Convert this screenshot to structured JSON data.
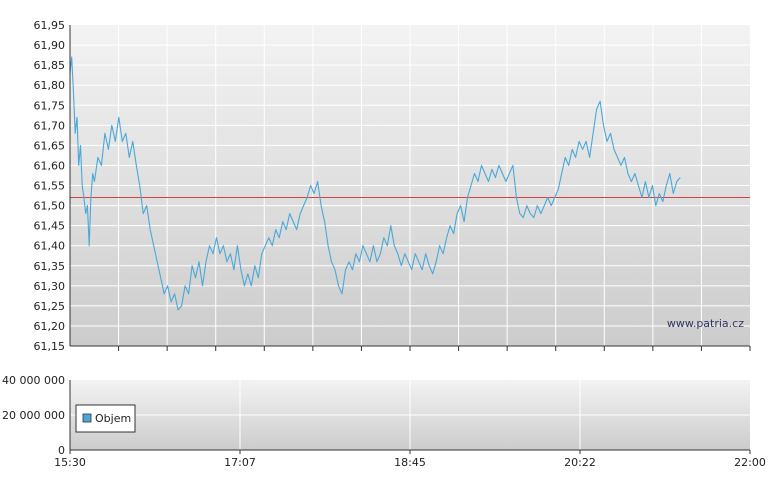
{
  "chart_data": [
    {
      "type": "line",
      "panel": "price",
      "ylim": [
        61.15,
        61.95
      ],
      "y_ticks": [
        "61,95",
        "61,90",
        "61,85",
        "61,80",
        "61,75",
        "61,70",
        "61,65",
        "61,60",
        "61,55",
        "61,50",
        "61,45",
        "61,40",
        "61,35",
        "61,30",
        "61,25",
        "61,20",
        "61,15"
      ],
      "reference_line": 61.52,
      "series": [
        {
          "color": "#4aa8d8",
          "points": [
            [
              "15:30",
              61.83
            ],
            [
              "15:31",
              61.87
            ],
            [
              "15:32",
              61.78
            ],
            [
              "15:33",
              61.68
            ],
            [
              "15:34",
              61.72
            ],
            [
              "15:35",
              61.6
            ],
            [
              "15:36",
              61.65
            ],
            [
              "15:37",
              61.55
            ],
            [
              "15:38",
              61.52
            ],
            [
              "15:39",
              61.48
            ],
            [
              "15:40",
              61.5
            ],
            [
              "15:41",
              61.4
            ],
            [
              "15:42",
              61.52
            ],
            [
              "15:43",
              61.58
            ],
            [
              "15:44",
              61.56
            ],
            [
              "15:46",
              61.62
            ],
            [
              "15:48",
              61.6
            ],
            [
              "15:50",
              61.68
            ],
            [
              "15:52",
              61.64
            ],
            [
              "15:54",
              61.7
            ],
            [
              "15:56",
              61.66
            ],
            [
              "15:58",
              61.72
            ],
            [
              "16:00",
              61.66
            ],
            [
              "16:02",
              61.68
            ],
            [
              "16:04",
              61.62
            ],
            [
              "16:06",
              61.66
            ],
            [
              "16:08",
              61.6
            ],
            [
              "16:10",
              61.55
            ],
            [
              "16:12",
              61.48
            ],
            [
              "16:14",
              61.5
            ],
            [
              "16:16",
              61.44
            ],
            [
              "16:18",
              61.4
            ],
            [
              "16:20",
              61.36
            ],
            [
              "16:22",
              61.32
            ],
            [
              "16:24",
              61.28
            ],
            [
              "16:26",
              61.3
            ],
            [
              "16:28",
              61.26
            ],
            [
              "16:30",
              61.28
            ],
            [
              "16:32",
              61.24
            ],
            [
              "16:34",
              61.25
            ],
            [
              "16:36",
              61.3
            ],
            [
              "16:38",
              61.28
            ],
            [
              "16:40",
              61.35
            ],
            [
              "16:42",
              61.32
            ],
            [
              "16:44",
              61.36
            ],
            [
              "16:46",
              61.3
            ],
            [
              "16:48",
              61.36
            ],
            [
              "16:50",
              61.4
            ],
            [
              "16:52",
              61.38
            ],
            [
              "16:54",
              61.42
            ],
            [
              "16:56",
              61.38
            ],
            [
              "16:58",
              61.4
            ],
            [
              "17:00",
              61.36
            ],
            [
              "17:02",
              61.38
            ],
            [
              "17:04",
              61.34
            ],
            [
              "17:06",
              61.4
            ],
            [
              "17:08",
              61.34
            ],
            [
              "17:10",
              61.3
            ],
            [
              "17:12",
              61.33
            ],
            [
              "17:14",
              61.3
            ],
            [
              "17:16",
              61.35
            ],
            [
              "17:18",
              61.32
            ],
            [
              "17:20",
              61.38
            ],
            [
              "17:22",
              61.4
            ],
            [
              "17:24",
              61.42
            ],
            [
              "17:26",
              61.4
            ],
            [
              "17:28",
              61.44
            ],
            [
              "17:30",
              61.42
            ],
            [
              "17:32",
              61.46
            ],
            [
              "17:34",
              61.44
            ],
            [
              "17:36",
              61.48
            ],
            [
              "17:38",
              61.46
            ],
            [
              "17:40",
              61.44
            ],
            [
              "17:42",
              61.48
            ],
            [
              "17:44",
              61.5
            ],
            [
              "17:46",
              61.52
            ],
            [
              "17:48",
              61.55
            ],
            [
              "17:50",
              61.53
            ],
            [
              "17:52",
              61.56
            ],
            [
              "17:54",
              61.5
            ],
            [
              "17:56",
              61.46
            ],
            [
              "17:58",
              61.4
            ],
            [
              "18:00",
              61.36
            ],
            [
              "18:02",
              61.34
            ],
            [
              "18:04",
              61.3
            ],
            [
              "18:06",
              61.28
            ],
            [
              "18:08",
              61.34
            ],
            [
              "18:10",
              61.36
            ],
            [
              "18:12",
              61.34
            ],
            [
              "18:14",
              61.38
            ],
            [
              "18:16",
              61.36
            ],
            [
              "18:18",
              61.4
            ],
            [
              "18:20",
              61.38
            ],
            [
              "18:22",
              61.36
            ],
            [
              "18:24",
              61.4
            ],
            [
              "18:26",
              61.36
            ],
            [
              "18:28",
              61.38
            ],
            [
              "18:30",
              61.42
            ],
            [
              "18:32",
              61.4
            ],
            [
              "18:34",
              61.45
            ],
            [
              "18:36",
              61.4
            ],
            [
              "18:38",
              61.38
            ],
            [
              "18:40",
              61.35
            ],
            [
              "18:42",
              61.38
            ],
            [
              "18:44",
              61.36
            ],
            [
              "18:46",
              61.34
            ],
            [
              "18:48",
              61.38
            ],
            [
              "18:50",
              61.36
            ],
            [
              "18:52",
              61.34
            ],
            [
              "18:54",
              61.38
            ],
            [
              "18:56",
              61.35
            ],
            [
              "18:58",
              61.33
            ],
            [
              "19:00",
              61.36
            ],
            [
              "19:02",
              61.4
            ],
            [
              "19:04",
              61.38
            ],
            [
              "19:06",
              61.42
            ],
            [
              "19:08",
              61.45
            ],
            [
              "19:10",
              61.43
            ],
            [
              "19:12",
              61.48
            ],
            [
              "19:14",
              61.5
            ],
            [
              "19:16",
              61.46
            ],
            [
              "19:18",
              61.52
            ],
            [
              "19:20",
              61.55
            ],
            [
              "19:22",
              61.58
            ],
            [
              "19:24",
              61.56
            ],
            [
              "19:26",
              61.6
            ],
            [
              "19:28",
              61.58
            ],
            [
              "19:30",
              61.56
            ],
            [
              "19:32",
              61.59
            ],
            [
              "19:34",
              61.57
            ],
            [
              "19:36",
              61.6
            ],
            [
              "19:38",
              61.58
            ],
            [
              "19:40",
              61.56
            ],
            [
              "19:42",
              61.58
            ],
            [
              "19:44",
              61.6
            ],
            [
              "19:46",
              61.52
            ],
            [
              "19:48",
              61.48
            ],
            [
              "19:50",
              61.47
            ],
            [
              "19:52",
              61.5
            ],
            [
              "19:54",
              61.48
            ],
            [
              "19:56",
              61.47
            ],
            [
              "19:58",
              61.5
            ],
            [
              "20:00",
              61.48
            ],
            [
              "20:02",
              61.5
            ],
            [
              "20:04",
              61.52
            ],
            [
              "20:06",
              61.5
            ],
            [
              "20:08",
              61.52
            ],
            [
              "20:10",
              61.54
            ],
            [
              "20:12",
              61.58
            ],
            [
              "20:14",
              61.62
            ],
            [
              "20:16",
              61.6
            ],
            [
              "20:18",
              61.64
            ],
            [
              "20:20",
              61.62
            ],
            [
              "20:22",
              61.66
            ],
            [
              "20:24",
              61.64
            ],
            [
              "20:26",
              61.66
            ],
            [
              "20:28",
              61.62
            ],
            [
              "20:30",
              61.68
            ],
            [
              "20:32",
              61.74
            ],
            [
              "20:34",
              61.76
            ],
            [
              "20:36",
              61.7
            ],
            [
              "20:38",
              61.66
            ],
            [
              "20:40",
              61.68
            ],
            [
              "20:42",
              61.64
            ],
            [
              "20:44",
              61.62
            ],
            [
              "20:46",
              61.6
            ],
            [
              "20:48",
              61.62
            ],
            [
              "20:50",
              61.58
            ],
            [
              "20:52",
              61.56
            ],
            [
              "20:54",
              61.58
            ],
            [
              "20:56",
              61.55
            ],
            [
              "20:58",
              61.52
            ],
            [
              "21:00",
              61.56
            ],
            [
              "21:02",
              61.52
            ],
            [
              "21:04",
              61.55
            ],
            [
              "21:06",
              61.5
            ],
            [
              "21:08",
              61.53
            ],
            [
              "21:10",
              61.51
            ],
            [
              "21:12",
              61.55
            ],
            [
              "21:14",
              61.58
            ],
            [
              "21:16",
              61.53
            ],
            [
              "21:18",
              61.56
            ],
            [
              "21:20",
              61.57
            ]
          ]
        }
      ]
    },
    {
      "type": "bar",
      "panel": "volume",
      "ylim": [
        0,
        40000000
      ],
      "y_ticks": [
        "40 000 000",
        "20 000 000",
        "0"
      ],
      "legend": "Objem",
      "legend_color": "#4aa8d8",
      "values": []
    }
  ],
  "x_axis": {
    "range": [
      "15:30",
      "22:00"
    ],
    "tick_labels": [
      "15:30",
      "17:07",
      "18:45",
      "20:22",
      "22:00"
    ]
  },
  "colors": {
    "line": "#4aa8d8",
    "reference": "#d94040",
    "plot_top": "#f2f2f2",
    "plot_bottom": "#cfcfcf",
    "grid": "#ffffff"
  },
  "watermark": "www.patria.cz"
}
